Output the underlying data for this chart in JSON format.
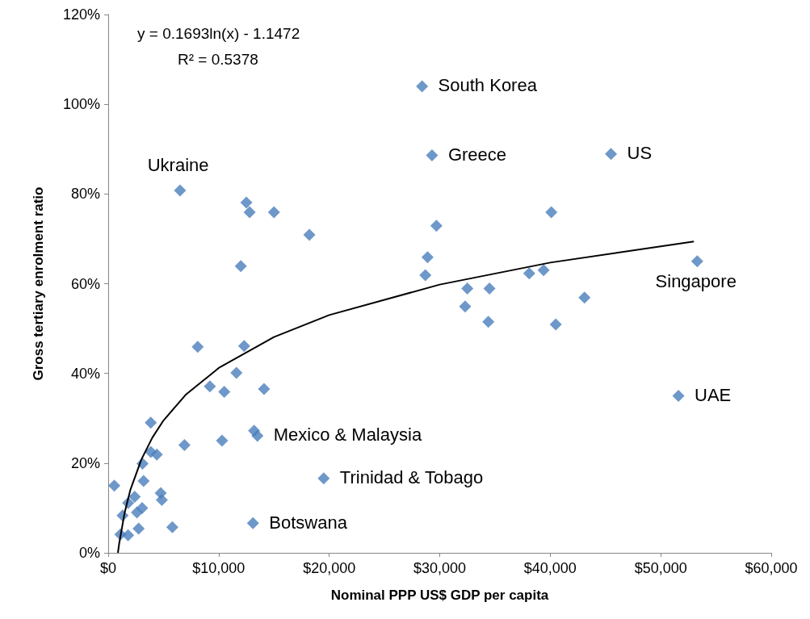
{
  "chart_data": {
    "type": "scatter",
    "xlabel": "Nominal PPP US$ GDP per capita",
    "ylabel": "Gross tertiary enrolment ratio",
    "grid": false,
    "xlim": [
      0,
      60000
    ],
    "xticks": [
      {
        "value": 0,
        "label": "$0"
      },
      {
        "value": 10000,
        "label": "$10,000"
      },
      {
        "value": 20000,
        "label": "$20,000"
      },
      {
        "value": 30000,
        "label": "$30,000"
      },
      {
        "value": 40000,
        "label": "$40,000"
      },
      {
        "value": 50000,
        "label": "$50,000"
      },
      {
        "value": 60000,
        "label": "$60,000"
      }
    ],
    "ylim": [
      0,
      120
    ],
    "yticks": [
      {
        "value": 0,
        "label": "0%"
      },
      {
        "value": 20,
        "label": "20%"
      },
      {
        "value": 40,
        "label": "40%"
      },
      {
        "value": 60,
        "label": "60%"
      },
      {
        "value": 80,
        "label": "80%"
      },
      {
        "value": 100,
        "label": "100%"
      },
      {
        "value": 120,
        "label": "120%"
      }
    ],
    "series": [
      {
        "marker": "diamond",
        "color": "#4a7ebb",
        "x": [
          550,
          1100,
          1300,
          1800,
          1800,
          2400,
          2600,
          2750,
          3070,
          3100,
          3200,
          3850,
          3850,
          4400,
          4750,
          4850,
          5800,
          6500,
          6900,
          8100,
          9200,
          10300,
          10500,
          11600,
          12000,
          12300,
          12500,
          12800,
          13100,
          13200,
          13500,
          14100,
          15000,
          18200,
          19500,
          28400,
          28700,
          28900,
          29300,
          29700,
          32300,
          32500,
          34400,
          34500,
          38100,
          39400,
          40100,
          40500,
          43100,
          45500,
          51600,
          53300
        ],
        "values": [
          15,
          4.1,
          8.3,
          11.1,
          3.9,
          12.5,
          9,
          5.4,
          10,
          19.9,
          16,
          29,
          22.5,
          21.9,
          13.3,
          11.8,
          5.7,
          80.8,
          24,
          45.9,
          37.1,
          25,
          35.9,
          40.1,
          63.9,
          46.1,
          78.1,
          75.9,
          6.6,
          27.2,
          26.1,
          36.5,
          75.9,
          70.9,
          16.6,
          104,
          61.9,
          65.9,
          88.6,
          72.9,
          54.9,
          58.9,
          51.5,
          58.9,
          62.3,
          63,
          75.9,
          50.9,
          56.9,
          88.9,
          35,
          65
        ]
      },
      {
        "type": "line",
        "marker": "none",
        "color": "#000000",
        "x": [
          877,
          1000,
          1500,
          2000,
          3000,
          4000,
          5000,
          7000,
          10000,
          15000,
          20000,
          30000,
          40000,
          53000
        ],
        "values": [
          0,
          2.2,
          9.1,
          14,
          20.8,
          25.7,
          29.5,
          35.2,
          41.2,
          48.1,
          53,
          59.8,
          64.7,
          69.4
        ]
      }
    ],
    "annotations": [
      "y = 0.1693ln(x) - 1.1472",
      "R² = 0.5378",
      {
        "text": "South Korea",
        "x": 28400,
        "y": 104
      },
      {
        "text": "Greece",
        "x": 29300,
        "y": 88.6
      },
      {
        "text": "US",
        "x": 45500,
        "y": 88.9
      },
      {
        "text": "Ukraine",
        "x": 6500,
        "y": 80.8
      },
      {
        "text": "Singapore",
        "x": 53300,
        "y": 65
      },
      {
        "text": "UAE",
        "x": 51600,
        "y": 35
      },
      {
        "text": "Mexico & Malaysia",
        "x": 13500,
        "y": 26.1
      },
      {
        "text": "Trinidad & Tobago",
        "x": 19500,
        "y": 16.6
      },
      {
        "text": "Botswana",
        "x": 13100,
        "y": 6.6
      }
    ]
  }
}
